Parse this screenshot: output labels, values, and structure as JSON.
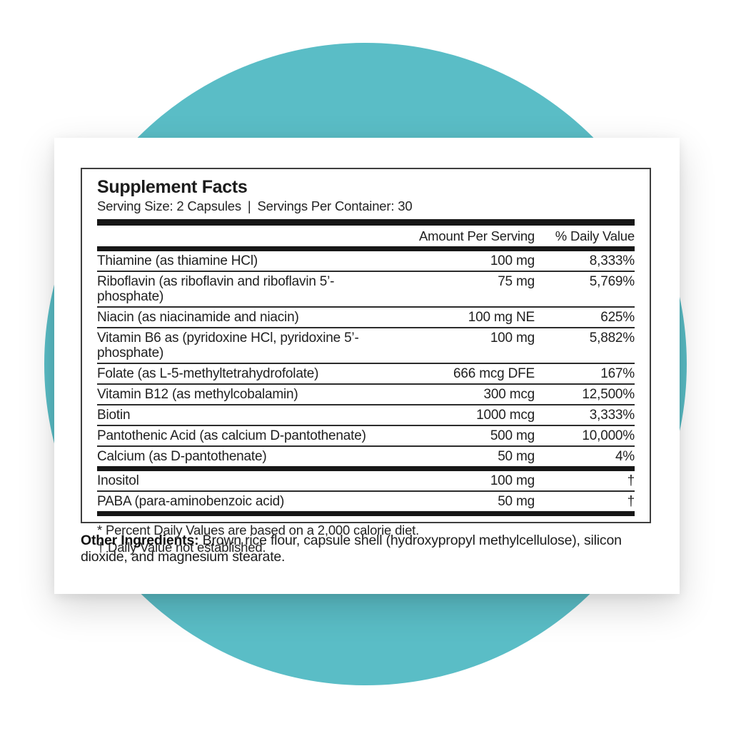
{
  "scene": {
    "circle_color": "#5abdc6"
  },
  "label": {
    "title": "Supplement Facts",
    "serving_size": "Serving Size: 2 Capsules",
    "serving_divider": "|",
    "servings_per_container": "Servings Per Container: 30",
    "header": {
      "amount": "Amount Per Serving",
      "daily_value": "% Daily Value"
    },
    "rows": [
      {
        "name": "Thiamine (as thiamine HCl)",
        "amount": "100 mg",
        "dv": "8,333%"
      },
      {
        "name": "Riboflavin (as riboflavin and riboflavin 5’-phosphate)",
        "amount": "75 mg",
        "dv": "5,769%"
      },
      {
        "name": "Niacin (as niacinamide and niacin)",
        "amount": "100 mg NE",
        "dv": "625%"
      },
      {
        "name": "Vitamin B6 as (pyridoxine HCl, pyridoxine 5’-phosphate)",
        "amount": "100 mg",
        "dv": "5,882%"
      },
      {
        "name": "Folate (as L-5-methyltetrahydrofolate)",
        "amount": "666 mcg DFE",
        "dv": "167%"
      },
      {
        "name": "Vitamin B12 (as methylcobalamin)",
        "amount": "300 mcg",
        "dv": "12,500%"
      },
      {
        "name": "Biotin",
        "amount": "1000 mcg",
        "dv": "3,333%"
      },
      {
        "name": "Pantothenic Acid (as calcium D-pantothenate)",
        "amount": "500 mg",
        "dv": "10,000%"
      },
      {
        "name": "Calcium (as D-pantothenate)",
        "amount": "50 mg",
        "dv": "4%"
      },
      {
        "name": "Inositol",
        "amount": "100 mg",
        "dv": "†"
      },
      {
        "name": "PABA (para-aminobenzoic acid)",
        "amount": "50 mg",
        "dv": "†"
      }
    ],
    "footnotes": {
      "percent_dv": "* Percent Daily Values are based on a 2,000 calorie diet.",
      "dagger": "† Daily Value not established."
    },
    "other_ingredients": {
      "label": "Other Ingredients:",
      "text": " Brown rice flour, capsule shell (hydroxypropyl methylcellulose), silicon dioxide, and magnesium stearate."
    }
  }
}
